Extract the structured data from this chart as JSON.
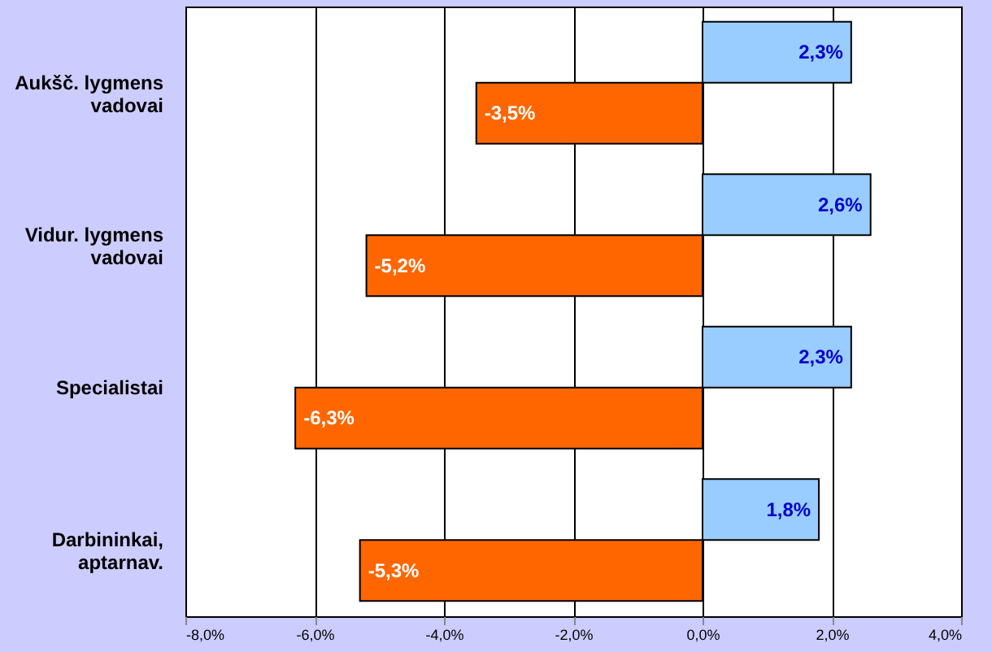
{
  "chart_data": {
    "type": "bar",
    "orientation": "horizontal",
    "categories": [
      "Aukšč. lygmens vadovai",
      "Vidur. lygmens vadovai",
      "Specialistai",
      "Darbininkai, aptarnav."
    ],
    "series": [
      {
        "color": "#99ccff",
        "values": [
          2.3,
          2.6,
          2.3,
          1.8
        ],
        "value_labels": [
          "2,3%",
          "2,6%",
          "2,3%",
          "1,8%"
        ]
      },
      {
        "color": "#ff6600",
        "values": [
          -3.5,
          -5.2,
          -6.3,
          -5.3
        ],
        "value_labels": [
          "-3,5%",
          "-5,2%",
          "-6,3%",
          "-5,3%"
        ]
      }
    ],
    "xlim": [
      -8,
      4
    ],
    "xticks": [
      {
        "value": -8,
        "label": "-8,0%"
      },
      {
        "value": -6,
        "label": "-6,0%"
      },
      {
        "value": -4,
        "label": "-4,0%"
      },
      {
        "value": -2,
        "label": "-2,0%"
      },
      {
        "value": 0,
        "label": "0,0%"
      },
      {
        "value": 2,
        "label": "2,0%"
      },
      {
        "value": 4,
        "label": "4,0%"
      }
    ],
    "grid": "x",
    "legend": false
  }
}
